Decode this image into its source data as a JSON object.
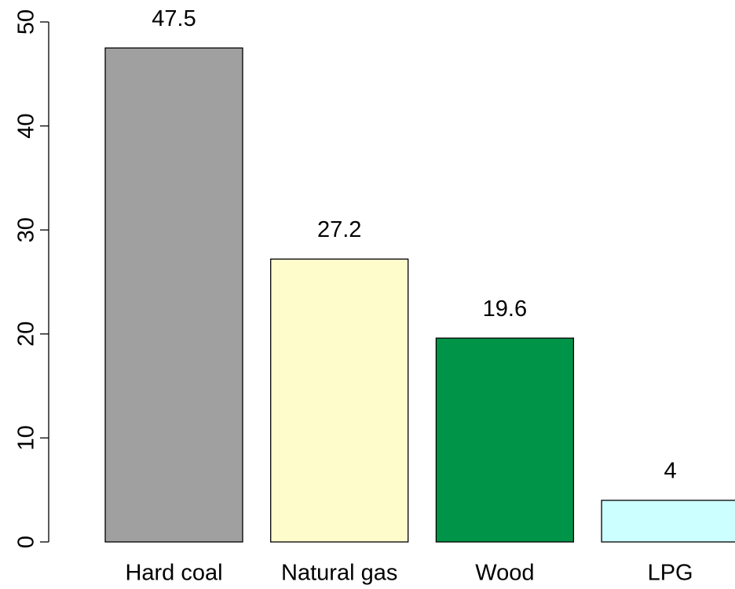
{
  "chart_data": {
    "type": "bar",
    "categories": [
      "Hard coal",
      "Natural gas",
      "Wood",
      "LPG"
    ],
    "values": [
      47.5,
      27.2,
      19.6,
      4
    ],
    "colors": [
      "#a0a0a0",
      "#fffccc",
      "#009448",
      "#ccffff"
    ],
    "ylim": [
      0,
      50
    ],
    "yticks": [
      0,
      10,
      20,
      30,
      40,
      50
    ],
    "grid": false
  }
}
